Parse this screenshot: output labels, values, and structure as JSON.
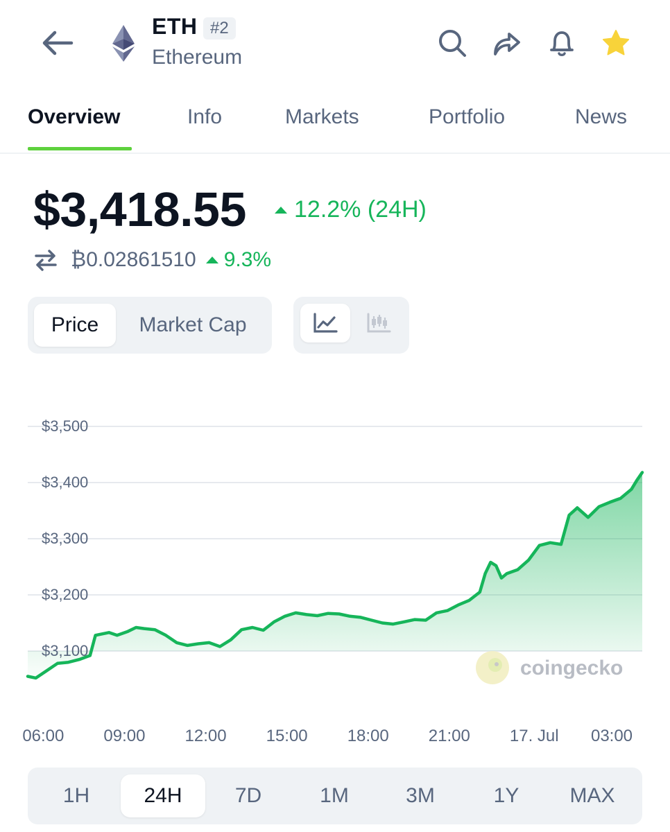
{
  "header": {
    "symbol": "ETH",
    "rank": "#2",
    "name": "Ethereum",
    "icons": [
      "back-arrow-icon",
      "search-icon",
      "share-icon",
      "bell-icon",
      "star-icon"
    ],
    "star_color": "#f8d33a"
  },
  "tabs": [
    {
      "label": "Overview",
      "active": true
    },
    {
      "label": "Info",
      "active": false
    },
    {
      "label": "Markets",
      "active": false
    },
    {
      "label": "Portfolio",
      "active": false
    },
    {
      "label": "News",
      "active": false
    }
  ],
  "price": {
    "value": "$3,418.55",
    "change_24h": "12.2% (24H)",
    "btc_value": "₿0.02861510",
    "btc_change": "9.3%"
  },
  "toggles": {
    "price": "Price",
    "market_cap": "Market Cap",
    "selected": "Price",
    "chart_type_selected": "line"
  },
  "chart_data": {
    "type": "area",
    "title": "",
    "ylim": [
      3050,
      3520
    ],
    "y_ticks": [
      "$3,500",
      "$3,400",
      "$3,300",
      "$3,200",
      "$3,100"
    ],
    "y_tick_values": [
      3500,
      3400,
      3300,
      3200,
      3100
    ],
    "x_ticks": [
      "06:00",
      "09:00",
      "12:00",
      "15:00",
      "18:00",
      "21:00",
      "17. Jul",
      "03:00"
    ],
    "x_tick_hours": [
      6,
      9,
      12,
      15,
      18,
      21,
      24,
      27
    ],
    "grid": true,
    "color": "#16b55a",
    "series": [
      {
        "x": [
          5.3,
          5.6,
          6.0,
          6.4,
          6.8,
          7.2,
          7.6,
          7.8,
          8.0,
          8.3,
          8.6,
          9.0,
          9.3,
          9.6,
          10.0,
          10.4,
          10.8,
          11.2,
          11.6,
          12.0,
          12.4,
          12.8,
          13.2,
          13.6,
          14.0,
          14.4,
          14.8,
          15.2,
          15.6,
          16.0,
          16.4,
          16.8,
          17.2,
          17.6,
          18.0,
          18.4,
          18.8,
          19.2,
          19.6,
          20.0,
          20.4,
          20.8,
          21.2,
          21.6,
          22.0,
          22.2,
          22.4,
          22.6,
          22.8,
          23.0,
          23.4,
          23.8,
          24.2,
          24.6,
          25.0,
          25.3,
          25.6,
          26.0,
          26.4,
          26.8,
          27.2,
          27.6,
          27.8,
          28.0
        ],
        "y": [
          3055,
          3052,
          3065,
          3078,
          3080,
          3085,
          3092,
          3128,
          3130,
          3133,
          3128,
          3135,
          3142,
          3140,
          3138,
          3128,
          3115,
          3110,
          3113,
          3115,
          3108,
          3120,
          3138,
          3142,
          3137,
          3152,
          3162,
          3168,
          3165,
          3163,
          3167,
          3166,
          3162,
          3160,
          3155,
          3150,
          3148,
          3152,
          3156,
          3155,
          3168,
          3172,
          3182,
          3190,
          3205,
          3238,
          3258,
          3252,
          3230,
          3238,
          3245,
          3262,
          3288,
          3293,
          3290,
          3342,
          3355,
          3338,
          3357,
          3365,
          3372,
          3388,
          3404,
          3418
        ]
      }
    ],
    "watermark": "coingecko"
  },
  "range": {
    "options": [
      "1H",
      "24H",
      "7D",
      "1M",
      "3M",
      "1Y",
      "MAX"
    ],
    "selected": "24H"
  }
}
